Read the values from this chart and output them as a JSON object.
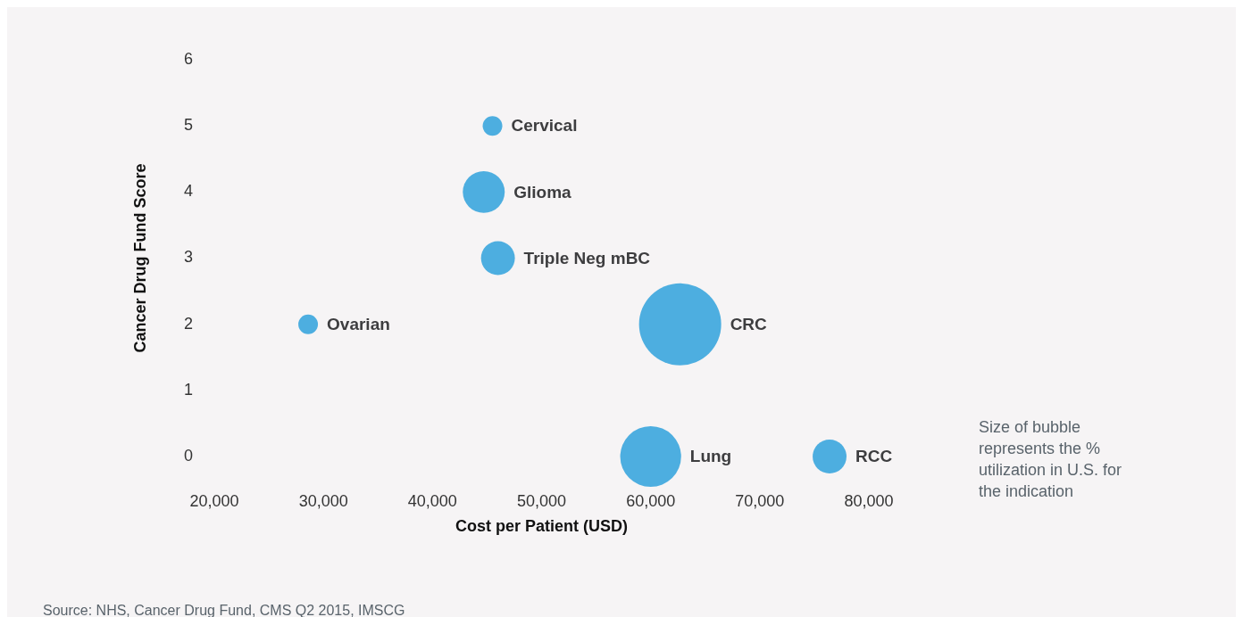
{
  "chart_data": {
    "type": "bubble",
    "xlabel": "Cost per Patient (USD)",
    "ylabel": "Cancer Drug Fund Score",
    "x": [
      45500,
      44700,
      46000,
      28600,
      62700,
      60000,
      76400
    ],
    "values": [
      5,
      4,
      3,
      2,
      2,
      0,
      0
    ],
    "sizes": [
      0.057,
      0.26,
      0.17,
      0.057,
      1,
      0.55,
      0.17
    ],
    "color": "#4daee0",
    "xlim": [
      20000,
      80000
    ],
    "xticks": [
      {
        "value": 20000,
        "label": "20,000"
      },
      {
        "value": 30000,
        "label": "30,000"
      },
      {
        "value": 40000,
        "label": "40,000"
      },
      {
        "value": 50000,
        "label": "50,000"
      },
      {
        "value": 60000,
        "label": "60,000"
      },
      {
        "value": 70000,
        "label": "70,000"
      },
      {
        "value": 80000,
        "label": "80,000"
      }
    ],
    "ylim": [
      0,
      6
    ],
    "yticks": [
      0,
      1,
      2,
      3,
      4,
      5,
      6
    ],
    "grid": false,
    "legend": false,
    "annotations": [
      {
        "text": "Cervical",
        "x": 45500,
        "y": 5
      },
      {
        "text": "Glioma",
        "x": 44700,
        "y": 4
      },
      {
        "text": "Triple Neg mBC",
        "x": 46000,
        "y": 3
      },
      {
        "text": "Ovarian",
        "x": 28600,
        "y": 2
      },
      {
        "text": "CRC",
        "x": 62700,
        "y": 2
      },
      {
        "text": "Lung",
        "x": 60000,
        "y": 0
      },
      {
        "text": "RCC",
        "x": 76400,
        "y": 0
      },
      "Size of bubble represents the % utilization in U.S. for the indication",
      "Source: NHS, Cancer Drug Fund, CMS Q2 2015, IMSCG"
    ]
  }
}
